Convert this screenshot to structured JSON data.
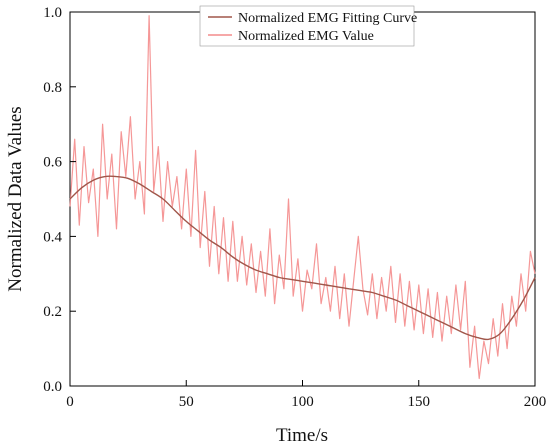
{
  "chart_data": {
    "type": "line",
    "title": "",
    "xlabel": "Time/s",
    "ylabel": "Normalized Data Values",
    "xlim": [
      0,
      200
    ],
    "ylim": [
      0,
      1.0
    ],
    "x_ticks": [
      "0",
      "50",
      "100",
      "150",
      "200"
    ],
    "y_ticks": [
      "0.0",
      "0.2",
      "0.4",
      "0.6",
      "0.8",
      "1.0"
    ],
    "grid": false,
    "legend_position": "top-right",
    "series": [
      {
        "name": "Normalized EMG Fitting Curve",
        "color": "#a0564a",
        "x": [
          0,
          5,
          10,
          15,
          20,
          25,
          30,
          35,
          40,
          45,
          50,
          55,
          60,
          65,
          70,
          75,
          80,
          85,
          90,
          95,
          100,
          105,
          110,
          115,
          120,
          125,
          130,
          135,
          140,
          145,
          150,
          155,
          160,
          165,
          170,
          175,
          180,
          185,
          190,
          195,
          200
        ],
        "y": [
          0.5,
          0.53,
          0.55,
          0.56,
          0.56,
          0.555,
          0.54,
          0.52,
          0.5,
          0.47,
          0.44,
          0.415,
          0.39,
          0.37,
          0.345,
          0.325,
          0.31,
          0.3,
          0.29,
          0.285,
          0.28,
          0.275,
          0.27,
          0.265,
          0.26,
          0.255,
          0.25,
          0.24,
          0.23,
          0.215,
          0.2,
          0.185,
          0.17,
          0.155,
          0.14,
          0.13,
          0.125,
          0.14,
          0.18,
          0.23,
          0.29
        ]
      },
      {
        "name": "Normalized EMG Value",
        "color": "#f48c8c",
        "x": [
          0,
          2,
          4,
          6,
          8,
          10,
          12,
          14,
          16,
          18,
          20,
          22,
          24,
          26,
          28,
          30,
          32,
          34,
          36,
          38,
          40,
          42,
          44,
          46,
          48,
          50,
          52,
          54,
          56,
          58,
          60,
          62,
          64,
          66,
          68,
          70,
          72,
          74,
          76,
          78,
          80,
          82,
          84,
          86,
          88,
          90,
          92,
          94,
          96,
          98,
          100,
          102,
          104,
          106,
          108,
          110,
          112,
          114,
          116,
          118,
          120,
          122,
          124,
          126,
          128,
          130,
          132,
          134,
          136,
          138,
          140,
          142,
          144,
          146,
          148,
          150,
          152,
          154,
          156,
          158,
          160,
          162,
          164,
          166,
          168,
          170,
          172,
          174,
          176,
          178,
          180,
          182,
          184,
          186,
          188,
          190,
          192,
          194,
          196,
          198,
          200
        ],
        "y": [
          0.48,
          0.66,
          0.43,
          0.64,
          0.49,
          0.58,
          0.4,
          0.7,
          0.5,
          0.62,
          0.42,
          0.68,
          0.56,
          0.72,
          0.5,
          0.6,
          0.46,
          0.99,
          0.52,
          0.64,
          0.44,
          0.6,
          0.48,
          0.56,
          0.42,
          0.58,
          0.4,
          0.63,
          0.37,
          0.52,
          0.32,
          0.48,
          0.3,
          0.45,
          0.28,
          0.44,
          0.28,
          0.4,
          0.27,
          0.38,
          0.25,
          0.36,
          0.24,
          0.42,
          0.22,
          0.35,
          0.26,
          0.5,
          0.24,
          0.34,
          0.2,
          0.31,
          0.26,
          0.38,
          0.22,
          0.29,
          0.2,
          0.32,
          0.18,
          0.3,
          0.16,
          0.28,
          0.4,
          0.26,
          0.19,
          0.3,
          0.18,
          0.29,
          0.2,
          0.32,
          0.17,
          0.3,
          0.16,
          0.28,
          0.15,
          0.27,
          0.14,
          0.26,
          0.13,
          0.25,
          0.12,
          0.24,
          0.14,
          0.27,
          0.15,
          0.28,
          0.05,
          0.16,
          0.02,
          0.12,
          0.06,
          0.18,
          0.08,
          0.22,
          0.1,
          0.24,
          0.16,
          0.3,
          0.2,
          0.36,
          0.3
        ]
      }
    ]
  }
}
